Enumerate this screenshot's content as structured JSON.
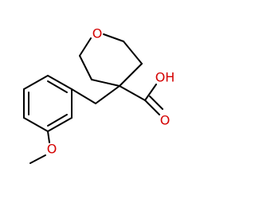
{
  "labels": {
    "ring_oxygen": "O",
    "hydroxyl": "OH",
    "carbonyl_oxygen": "O",
    "methoxy_oxygen": "O"
  }
}
